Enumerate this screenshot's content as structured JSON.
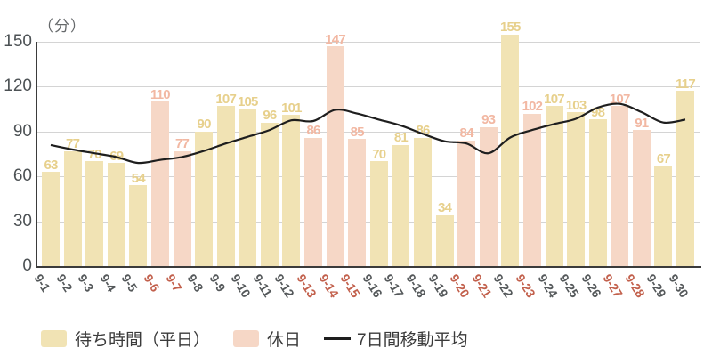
{
  "chart_data": {
    "type": "bar",
    "unit": "（分）",
    "categories": [
      "9-1",
      "9-2",
      "9-3",
      "9-4",
      "9-5",
      "9-6",
      "9-7",
      "9-8",
      "9-9",
      "9-10",
      "9-11",
      "9-12",
      "9-13",
      "9-14",
      "9-15",
      "9-16",
      "9-17",
      "9-18",
      "9-19",
      "9-20",
      "9-21",
      "9-22",
      "9-23",
      "9-24",
      "9-25",
      "9-26",
      "9-27",
      "9-28",
      "9-29",
      "9-30"
    ],
    "values": [
      63,
      77,
      70,
      69,
      54,
      110,
      77,
      90,
      107,
      105,
      96,
      101,
      86,
      147,
      85,
      70,
      81,
      86,
      34,
      84,
      93,
      155,
      102,
      107,
      103,
      98,
      107,
      91,
      67,
      117
    ],
    "holidays": [
      "9-6",
      "9-7",
      "9-13",
      "9-14",
      "9-15",
      "9-20",
      "9-21",
      "9-23",
      "9-27",
      "9-28"
    ],
    "series": [
      {
        "name": "待ち時間（平日）",
        "type": "bar",
        "role": "weekday"
      },
      {
        "name": "休日",
        "type": "bar",
        "role": "holiday"
      },
      {
        "name": "7日間移動平均",
        "type": "line",
        "values": [
          81,
          78,
          75.5,
          73,
          69,
          71,
          73,
          77,
          82,
          86.5,
          91,
          97.5,
          97,
          104.5,
          102,
          98,
          94,
          88.5,
          83.5,
          82,
          75.5,
          86,
          91,
          95,
          98.5,
          106,
          108.5,
          103,
          96,
          98
        ]
      }
    ],
    "xlabel": "",
    "ylabel": "（分）",
    "yticks": [
      0,
      30,
      60,
      90,
      120,
      150
    ],
    "ylim": [
      0,
      150
    ],
    "grid": "horizontal",
    "legend_position": "bottom",
    "colors": {
      "weekday_bar": "#f1e3b4",
      "weekday_value_label": "#e7d08c",
      "holiday_bar": "#f6d7c6",
      "holiday_value_label": "#f2b8a3",
      "line": "#1e1e1e",
      "grid": "#d4d4d4",
      "axis": "#3b3b3b",
      "y_tick_text": "#4c5154",
      "x_tick_weekday": "#54585a",
      "x_tick_holiday": "#c2604c"
    }
  }
}
